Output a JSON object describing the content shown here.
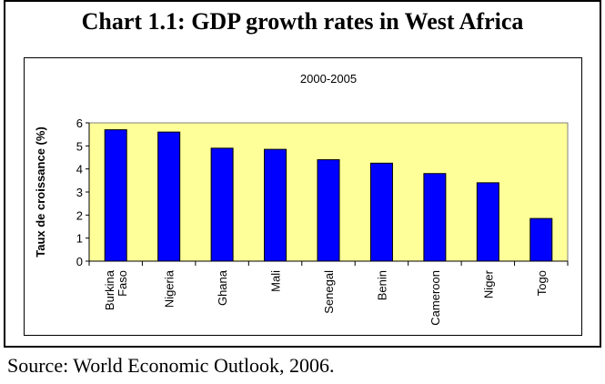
{
  "title": "Chart 1.1: GDP growth rates in West Africa",
  "source": "Source: World Economic Outlook, 2006.",
  "colors": {
    "plot_background": "#ffff99",
    "bar_fill": "#0000ff",
    "bar_stroke": "#000000"
  },
  "chart_data": {
    "type": "bar",
    "title": "2000-2005",
    "xlabel": "",
    "ylabel": "Taux de croissance (%)",
    "categories": [
      "Burkina Faso",
      "Nigeria",
      "Ghana",
      "Mali",
      "Senegal",
      "Benin",
      "Cameroon",
      "Niger",
      "Togo"
    ],
    "category_lines": [
      [
        "Burkina",
        "Faso"
      ],
      [
        "Nigeria"
      ],
      [
        "Ghana"
      ],
      [
        "Mali"
      ],
      [
        "Senegal"
      ],
      [
        "Benin"
      ],
      [
        "Cameroon"
      ],
      [
        "Niger"
      ],
      [
        "Togo"
      ]
    ],
    "values": [
      5.7,
      5.6,
      4.9,
      4.85,
      4.4,
      4.25,
      3.8,
      3.4,
      1.85
    ],
    "ylim": [
      0,
      6
    ],
    "yticks": [
      "0",
      "1",
      "2",
      "3",
      "4",
      "5",
      "6"
    ],
    "grid": false,
    "legend": "none"
  }
}
